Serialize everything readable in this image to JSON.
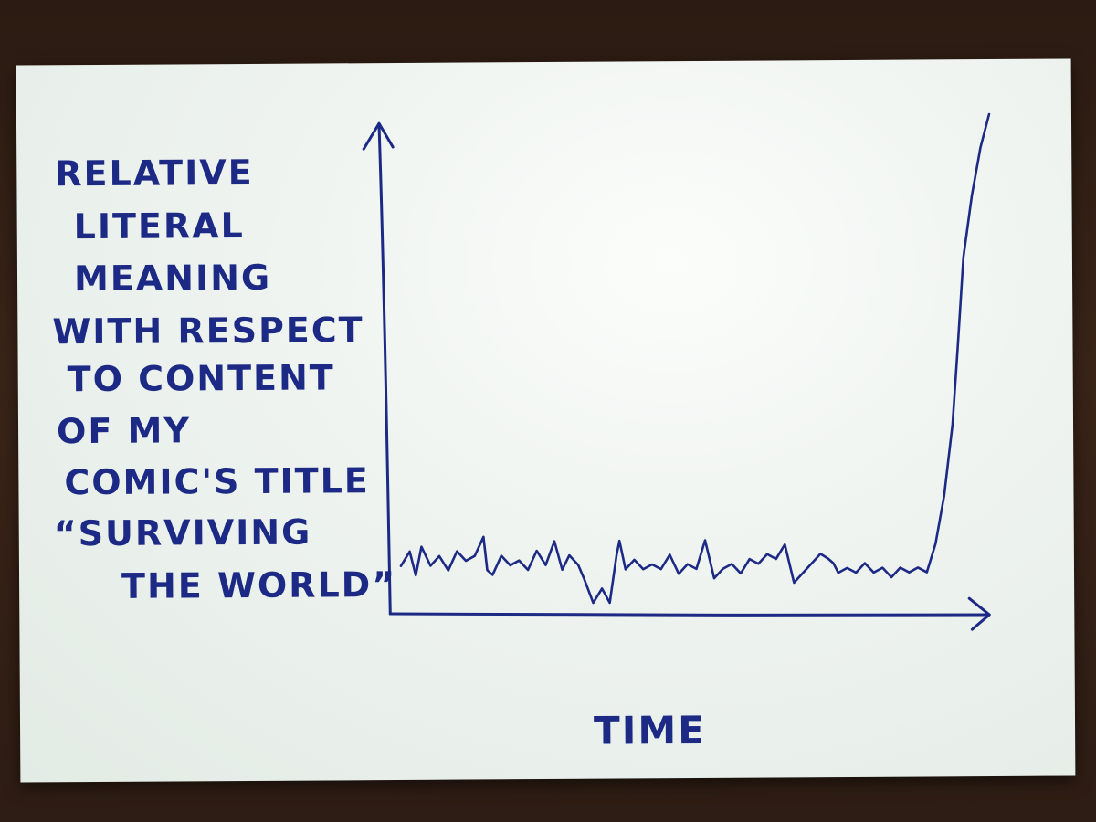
{
  "chart_data": {
    "type": "line",
    "title": "",
    "ylabel_lines": [
      "Relative",
      "literal",
      "meaning",
      "with respect",
      "to content",
      "of my",
      "comic's title",
      "“Surviving",
      "the world”"
    ],
    "xlabel": "Time",
    "xlim": [
      0,
      100
    ],
    "ylim": [
      0,
      100
    ],
    "grid": false,
    "legend": "none",
    "series": [
      {
        "color": "#1c2a86",
        "x": [
          0,
          1.5,
          2.5,
          3.5,
          5,
          6.5,
          8,
          9.5,
          11,
          12.5,
          14,
          14.6,
          15.5,
          17,
          18.5,
          20,
          21.5,
          23,
          24.5,
          26,
          27.3,
          28.5,
          30,
          31,
          32.5,
          34,
          35.3,
          36.5,
          37,
          38,
          39.5,
          41,
          42.5,
          44,
          45.5,
          47,
          48.5,
          50,
          51.5,
          53,
          54.5,
          56,
          57.5,
          59,
          60.5,
          62,
          63.5,
          65,
          66.5,
          68,
          69.5,
          71,
          72.3,
          73.2,
          74,
          75.5,
          77,
          78.5,
          80,
          81.5,
          83,
          84.5,
          86,
          87.5,
          89,
          90.5,
          92,
          93.5,
          94.5,
          95.5,
          97,
          98.5,
          100
        ],
        "y": [
          6,
          9,
          4,
          10,
          6,
          8,
          5,
          9,
          7,
          8,
          12,
          5,
          4,
          8,
          6,
          7,
          5,
          9,
          6,
          11,
          5,
          8,
          6,
          3,
          -2,
          1,
          -2,
          8,
          11,
          5,
          7,
          5,
          6,
          5,
          8,
          4,
          6,
          5,
          11,
          3,
          5,
          6,
          4,
          7,
          6,
          8,
          7,
          10,
          2,
          4,
          6,
          8,
          7,
          6,
          4,
          5,
          4,
          6,
          4,
          5,
          3,
          5,
          4,
          5,
          4,
          10,
          20,
          35,
          52,
          70,
          83,
          93,
          100
        ]
      }
    ]
  }
}
